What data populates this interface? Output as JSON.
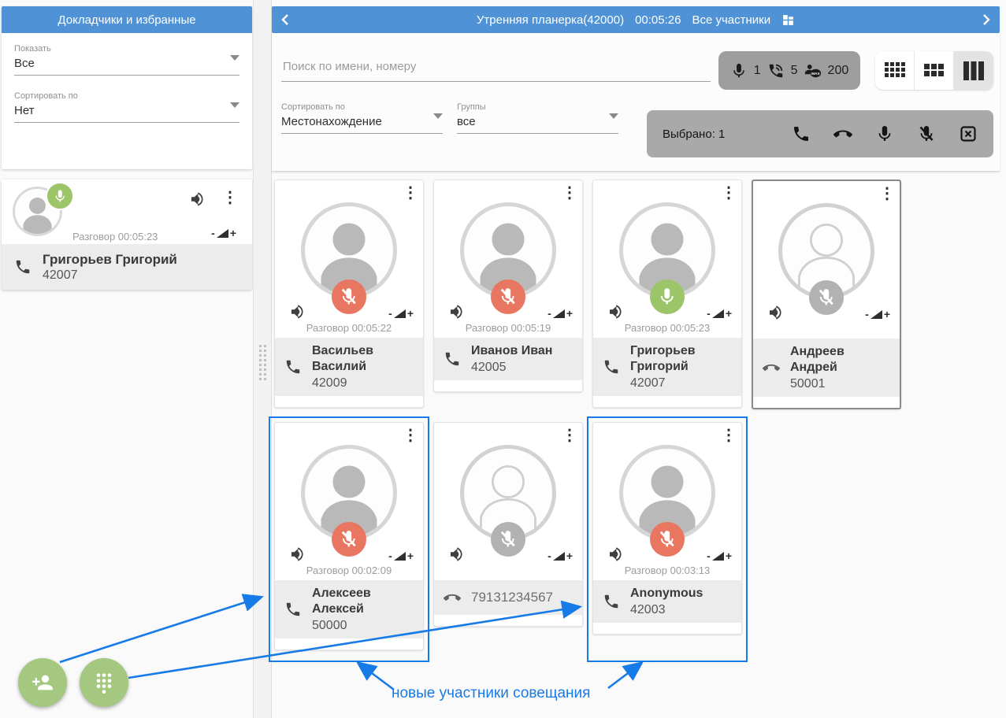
{
  "sidebar": {
    "title": "Докладчики и избранные",
    "show_filter": {
      "label": "Показать",
      "value": "Все"
    },
    "sort_filter": {
      "label": "Сортировать по",
      "value": "Нет"
    },
    "favorite": {
      "status": "Разговор 00:05:23",
      "name": "Григорьев Григорий",
      "number": "42007"
    }
  },
  "header": {
    "title": "Утренняя планерка(42000)",
    "timer": "00:05:26",
    "subtitle": "Все участники"
  },
  "toolbar": {
    "search_placeholder": "Поиск по имени, номеру",
    "stats": {
      "mic_count": "1",
      "call_count": "5",
      "max_count": "200"
    },
    "sort_select": {
      "label": "Сортировать по",
      "value": "Местонахождение"
    },
    "group_select": {
      "label": "Группы",
      "value": "все"
    },
    "selection_label": "Выбрано: 1"
  },
  "participants": [
    {
      "name": "Васильев Василий",
      "number": "42009",
      "status": "Разговор 00:05:22",
      "mic": "muted",
      "connected": true,
      "call_icon": "phone",
      "selected": false,
      "new": false
    },
    {
      "name": "Иванов Иван",
      "number": "42005",
      "status": "Разговор 00:05:19",
      "mic": "muted",
      "connected": true,
      "call_icon": "phone",
      "selected": false,
      "new": false
    },
    {
      "name": "Григорьев Григорий",
      "number": "42007",
      "status": "Разговор 00:05:23",
      "mic": "on",
      "connected": true,
      "call_icon": "phone",
      "selected": false,
      "new": false
    },
    {
      "name": "Андреев Андрей",
      "number": "50001",
      "status": "",
      "mic": "off",
      "connected": false,
      "call_icon": "phone-down",
      "selected": true,
      "new": false
    },
    {
      "name": "Алексеев Алексей",
      "number": "50000",
      "status": "Разговор 00:02:09",
      "mic": "muted",
      "connected": true,
      "call_icon": "phone",
      "selected": false,
      "new": true
    },
    {
      "name": "79131234567",
      "number": "",
      "status": "",
      "mic": "off",
      "connected": false,
      "call_icon": "phone-down",
      "selected": false,
      "new": false,
      "plain_name": true
    },
    {
      "name": "Anonymous",
      "number": "42003",
      "status": "Разговор 00:03:13",
      "mic": "muted",
      "connected": true,
      "call_icon": "phone",
      "selected": false,
      "new": true
    }
  ],
  "annotation": {
    "text": "новые участники совещания"
  },
  "icons": {
    "mic-icon": "microphone",
    "mic-off-icon": "microphone-slash",
    "speaker-icon": "volume-up",
    "volume-widget": "-◣+",
    "menu-dots-icon": "⋮",
    "phone-icon": "handset",
    "phone-down-icon": "handset-down",
    "phone-in-talk-icon": "handset-waves",
    "max-users-icon": "person-MAX",
    "grid-small-icon": "grid-4x3",
    "grid-medium-icon": "grid-3x2",
    "grid-large-icon": "bars-3",
    "deselect-icon": "x-in-box",
    "add-person-icon": "person-plus",
    "dialpad-icon": "dots-pad",
    "dashboard-icon": "four-tiles",
    "chevron-left-icon": "‹",
    "chevron-right-icon": "›"
  },
  "colors": {
    "header_blue": "#4f92d6",
    "accent_blue": "#167ae7",
    "mic_on_green": "#9cc468",
    "mic_muted_red": "#e87660",
    "mic_off_gray": "#b2b2b2",
    "fab_green": "#a4c87f",
    "pill_gray": "#9e9e9e",
    "selection_gray": "#a9a9a9",
    "footer_gray": "#ececec"
  }
}
